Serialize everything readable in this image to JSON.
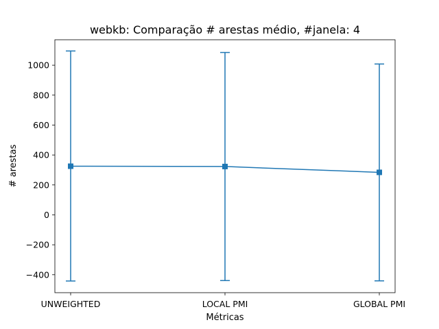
{
  "chart_data": {
    "type": "line",
    "title": "webkb: Comparação # arestas médio, #janela: 4",
    "xlabel": "Métricas",
    "ylabel": "# arestas",
    "categories": [
      "UNWEIGHTED",
      "LOCAL PMI",
      "GLOBAL PMI"
    ],
    "series": [
      {
        "values": [
          325,
          323,
          284
        ],
        "err_low": [
          -442,
          -439,
          -441
        ],
        "err_high": [
          1095,
          1085,
          1008
        ],
        "color": "#1f77b4",
        "marker": "square"
      }
    ],
    "ylim": [
      -520,
      1170
    ],
    "yticks": [
      -400,
      -200,
      0,
      200,
      400,
      600,
      800,
      1000
    ],
    "ytick_labels": [
      "−400",
      "−200",
      "0",
      "200",
      "400",
      "600",
      "800",
      "1000"
    ],
    "grid": false,
    "legend": "none"
  }
}
